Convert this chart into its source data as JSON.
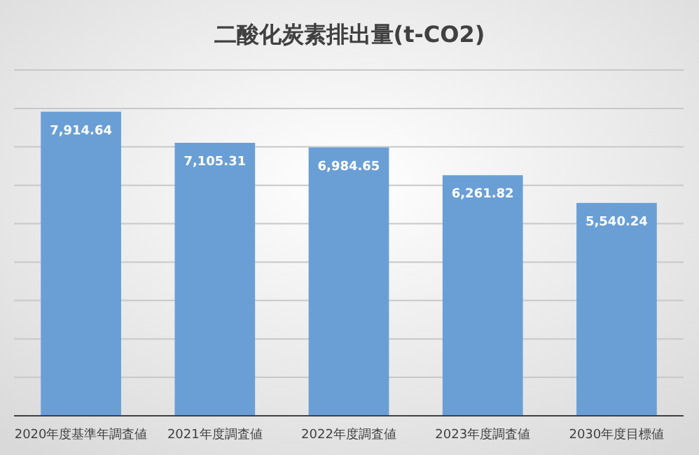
{
  "chart_data": {
    "type": "bar",
    "title": "二酸化炭素排出量(t-CO2)",
    "categories": [
      "2020年度基準年調査値",
      "2021年度調査値",
      "2022年度調査値",
      "2023年度調査値",
      "2030年度目標値"
    ],
    "values": [
      7914.64,
      7105.31,
      6984.65,
      6261.82,
      5540.24
    ],
    "value_labels": [
      "7,914.64",
      "7,105.31",
      "6,984.65",
      "6,261.82",
      "5,540.24"
    ],
    "color": "#6a9fd6",
    "ylim": [
      0,
      9000
    ],
    "yticks": [
      {
        "value": 0,
        "label": null
      },
      {
        "value": 1000,
        "label": null
      },
      {
        "value": 2000,
        "label": null
      },
      {
        "value": 3000,
        "label": null
      },
      {
        "value": 4000,
        "label": null
      },
      {
        "value": 5000,
        "label": null
      },
      {
        "value": 6000,
        "label": null
      },
      {
        "value": 7000,
        "label": null
      },
      {
        "value": 8000,
        "label": null
      },
      {
        "value": 9000,
        "label": null
      }
    ],
    "grid": "y",
    "tick_labels": "x"
  }
}
